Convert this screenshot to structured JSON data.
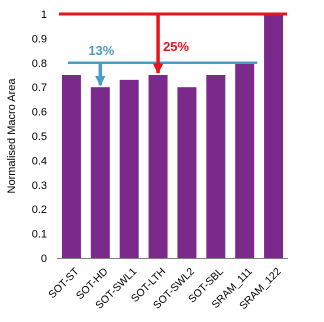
{
  "chart_data": {
    "type": "bar",
    "categories": [
      "SOT-ST",
      "SOT-HD",
      "SOT-SWL1",
      "SOT-LTH",
      "SOT-SWL2",
      "SOT-SBL",
      "SRAM_111",
      "SRAM_122"
    ],
    "values": [
      0.75,
      0.7,
      0.73,
      0.75,
      0.7,
      0.75,
      0.8,
      1.0
    ],
    "ylabel": "Normalised Macro Area",
    "xlabel": "",
    "ylim": [
      0,
      1
    ],
    "yticks": [
      "0",
      "0.1",
      "0.2",
      "0.3",
      "0.4",
      "0.5",
      "0.6",
      "0.7",
      "0.8",
      "0.9",
      "1"
    ],
    "bar_color": "#7b2a8c",
    "grid": false,
    "annotations": [
      {
        "text": "13%",
        "color": "#4a9cc9",
        "reference_value": 0.8,
        "from_value": 0.8,
        "to_value": 0.7,
        "arrow_category": "SOT-HD"
      },
      {
        "text": "25%",
        "color": "#e8141c",
        "reference_value": 1.0,
        "from_value": 1.0,
        "to_value": 0.75,
        "arrow_category": "SOT-LTH"
      }
    ]
  }
}
